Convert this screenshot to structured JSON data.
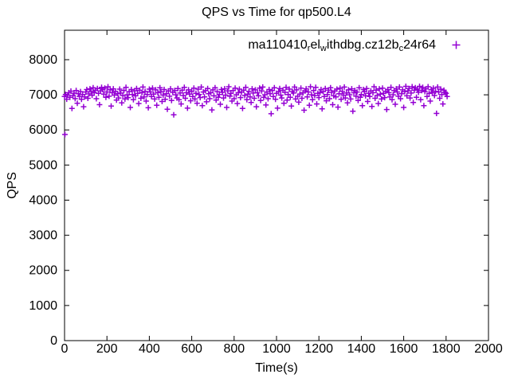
{
  "title": "QPS vs Time for qp500.L4",
  "axes": {
    "x_label": "Time(s)",
    "y_label": "QPS"
  },
  "legend": {
    "label_plain": "ma110410_rel_withdbg.cz12b_c24r64",
    "segments": [
      {
        "text": "ma110410",
        "sub": false
      },
      {
        "text": "r",
        "sub": true
      },
      {
        "text": "el",
        "sub": false
      },
      {
        "text": "w",
        "sub": true
      },
      {
        "text": "ithdbg.cz12b",
        "sub": false
      },
      {
        "text": "c",
        "sub": true
      },
      {
        "text": "24r64",
        "sub": false
      }
    ],
    "marker": "plus",
    "marker_color": "#9400D3"
  },
  "chart_data": {
    "type": "scatter",
    "title": "QPS vs Time for qp500.L4",
    "xlabel": "Time(s)",
    "ylabel": "QPS",
    "xlim": [
      0,
      2000
    ],
    "ylim": [
      0,
      8838
    ],
    "x_ticks": [
      0,
      200,
      400,
      600,
      800,
      1000,
      1200,
      1400,
      1600,
      1800,
      2000
    ],
    "y_ticks": [
      0,
      1000,
      2000,
      3000,
      4000,
      5000,
      6000,
      7000,
      8000
    ],
    "grid": false,
    "border": true,
    "tick_style": "inward-mirrored",
    "legend_position": "top-right-inside",
    "series": [
      {
        "name": "ma110410_rel_withdbg.cz12b_c24r64",
        "marker": "plus",
        "color": "#9400D3",
        "x_start": 0,
        "x_step": 5,
        "y_values": [
          6950,
          7010,
          6875,
          6990,
          7060,
          6930,
          7105,
          6610,
          6980,
          7045,
          6890,
          7120,
          6760,
          7030,
          6955,
          7090,
          6870,
          7010,
          6660,
          6940,
          7080,
          7150,
          6900,
          7025,
          7170,
          7095,
          6985,
          7200,
          7060,
          7130,
          6890,
          7180,
          7040,
          6720,
          7110,
          7210,
          7150,
          7020,
          7190,
          6930,
          7080,
          7230,
          6960,
          7140,
          6680,
          7060,
          7170,
          6990,
          7100,
          6850,
          7030,
          6910,
          7160,
          7050,
          6770,
          6980,
          7120,
          6880,
          7210,
          7000,
          6920,
          7090,
          6640,
          7150,
          7010,
          6860,
          7110,
          6970,
          7180,
          7040,
          6750,
          7130,
          6900,
          7060,
          7220,
          6940,
          7100,
          6820,
          7010,
          6630,
          7160,
          7080,
          6950,
          7190,
          7020,
          6880,
          7140,
          6700,
          7060,
          6930,
          7200,
          7090,
          6810,
          6990,
          7150,
          6870,
          7030,
          6590,
          7110,
          6960,
          7170,
          6840,
          7070,
          6430,
          7120,
          7000,
          6910,
          7180,
          6860,
          7050,
          6740,
          7130,
          6980,
          7210,
          6900,
          7060,
          6620,
          7140,
          7020,
          6830,
          7100,
          6950,
          7190,
          6880,
          7040,
          6760,
          7160,
          7010,
          6920,
          7220,
          6690,
          7080,
          6940,
          7120,
          6800,
          7180,
          7030,
          6890,
          7060,
          6570,
          7140,
          6970,
          7200,
          6850,
          7090,
          6930,
          7010,
          6730,
          7150,
          7070,
          6910,
          7170,
          6990,
          6640,
          7110,
          7230,
          6960,
          7040,
          6820,
          7120,
          6890,
          7190,
          7000,
          6750,
          7060,
          7160,
          6920,
          7080,
          6610,
          7130,
          6980,
          7210,
          6860,
          7020,
          7100,
          6940,
          6780,
          7170,
          7050,
          6900,
          7140,
          6660,
          7060,
          6970,
          7190,
          6840,
          7110,
          7220,
          6930,
          7000,
          6710,
          7080,
          6890,
          7150,
          7030,
          6460,
          7120,
          6950,
          7200,
          6870,
          7040,
          6620,
          7090,
          7180,
          6990,
          6910,
          7130,
          6760,
          7070,
          7210,
          6850,
          7010,
          7160,
          6930,
          6680,
          7100,
          7050,
          7220,
          6880,
          7140,
          6960,
          6790,
          7020,
          7190,
          6900,
          7060,
          6560,
          7110,
          7170,
          6940,
          7080,
          6700,
          7230,
          7000,
          6860,
          7120,
          6980,
          7210,
          6740,
          7040,
          6920,
          7060,
          7150,
          6600,
          7090,
          6950,
          7180,
          6830,
          7010,
          7130,
          6890,
          7200,
          7070,
          6720,
          6970,
          7110,
          6940,
          7160,
          6650,
          7030,
          7190,
          6870,
          7100,
          6990,
          7220,
          6910,
          7050,
          6770,
          7140,
          7000,
          6880,
          7170,
          6530,
          7060,
          7120,
          6960,
          7080,
          6840,
          7200,
          6930,
          7010,
          6690,
          7150,
          7090,
          6970,
          7180,
          6810,
          7040,
          6950,
          7110,
          6670,
          7060,
          7230,
          6900,
          7130,
          6980,
          6750,
          7170,
          7020,
          6880,
          7190,
          7040,
          6920,
          7100,
          6580,
          7150,
          7060,
          6940,
          7210,
          6860,
          7000,
          7120,
          6730,
          7170,
          7080,
          6960,
          7220,
          6890,
          7030,
          7140,
          6640,
          7090,
          7240,
          6970,
          7110,
          7180,
          6910,
          7050,
          7230,
          6780,
          7130,
          7200,
          6930,
          7160,
          7070,
          7240,
          6860,
          7120,
          7210,
          6690,
          7090,
          7170,
          6950,
          7230,
          7040,
          6820,
          7150,
          7060,
          7190,
          6980,
          7100,
          6470,
          7220,
          7080,
          6900,
          7160,
          7010,
          6740,
          7130,
          7070,
          7040,
          6950
        ],
        "extra_points": [
          [
            2,
            5870
          ]
        ]
      }
    ]
  }
}
